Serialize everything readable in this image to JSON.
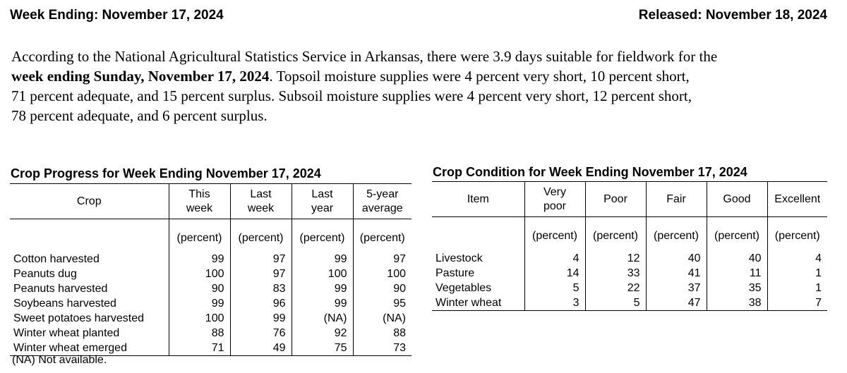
{
  "header": {
    "left": "Week Ending: November 17, 2024",
    "right": "Released: November 18, 2024"
  },
  "summary": {
    "line1": "According to the National Agricultural Statistics Service in Arkansas, there were 3.9 days suitable for fieldwork for the",
    "line2_bold": "week ending Sunday, November 17, 2024",
    "line2_rest": ". Topsoil moisture supplies were 4 percent very short, 10 percent short,",
    "line3": "71 percent adequate, and 15 percent surplus. Subsoil moisture supplies were 4 percent very short, 12 percent short,",
    "line4": "78 percent adequate, and 6 percent surplus."
  },
  "progress": {
    "title": "Crop Progress for Week Ending November 17, 2024",
    "col_crop": "Crop",
    "col_this": [
      "This",
      "week"
    ],
    "col_last_week": [
      "Last",
      "week"
    ],
    "col_last_year": [
      "Last",
      "year"
    ],
    "col_5yr": [
      "5-year",
      "average"
    ],
    "unit": "(percent)",
    "rows": [
      {
        "label": "Cotton harvested",
        "v": [
          "99",
          "97",
          "99",
          "97"
        ]
      },
      {
        "label": "Peanuts dug",
        "v": [
          "100",
          "97",
          "100",
          "100"
        ]
      },
      {
        "label": "Peanuts harvested",
        "v": [
          "90",
          "83",
          "99",
          "90"
        ]
      },
      {
        "label": "Soybeans harvested",
        "v": [
          "99",
          "96",
          "99",
          "95"
        ]
      },
      {
        "label": "Sweet potatoes harvested",
        "v": [
          "100",
          "99",
          "(NA)",
          "(NA)"
        ]
      },
      {
        "label": "Winter wheat planted",
        "v": [
          "88",
          "76",
          "92",
          "88"
        ]
      },
      {
        "label": "Winter wheat emerged",
        "v": [
          "71",
          "49",
          "75",
          "73"
        ]
      }
    ]
  },
  "condition": {
    "title": "Crop Condition for Week Ending November 17, 2024",
    "col_item": "Item",
    "col_very_poor": [
      "Very",
      "poor"
    ],
    "col_poor": "Poor",
    "col_fair": "Fair",
    "col_good": "Good",
    "col_excellent": "Excellent",
    "unit": "(percent)",
    "rows": [
      {
        "label": "Livestock",
        "v": [
          "4",
          "12",
          "40",
          "40",
          "4"
        ]
      },
      {
        "label": "Pasture",
        "v": [
          "14",
          "33",
          "41",
          "11",
          "1"
        ]
      },
      {
        "label": "Vegetables",
        "v": [
          "5",
          "22",
          "37",
          "35",
          "1"
        ]
      },
      {
        "label": "Winter wheat",
        "v": [
          "3",
          "5",
          "47",
          "38",
          "7"
        ]
      }
    ]
  },
  "footnote": "(NA) Not available."
}
